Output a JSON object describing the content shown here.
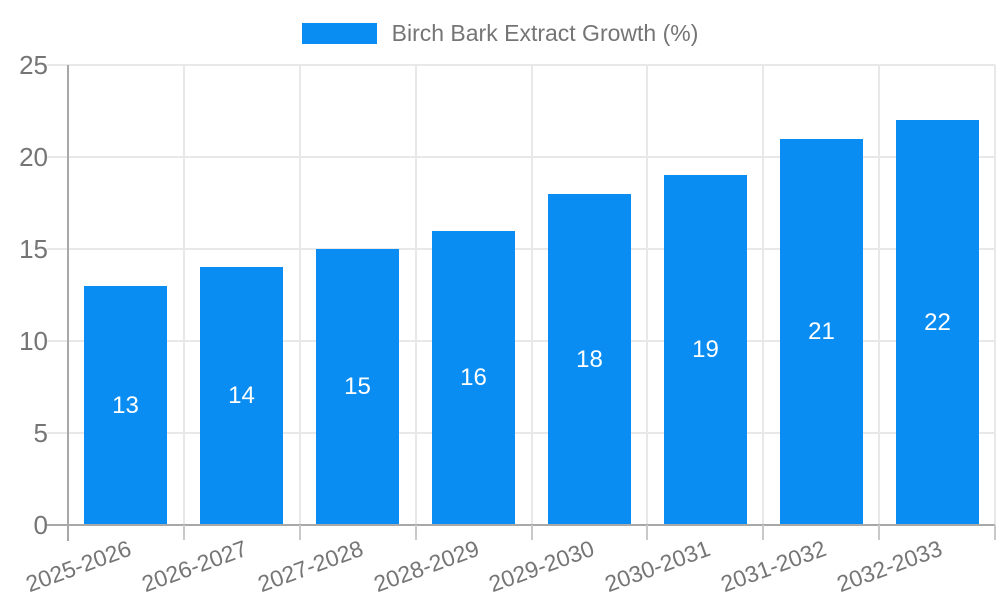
{
  "chart_data": {
    "type": "bar",
    "title": "",
    "legend": {
      "label": "Birch Bark Extract Growth (%)",
      "position": "top-center"
    },
    "categories": [
      "2025-2026",
      "2026-2027",
      "2027-2028",
      "2028-2029",
      "2029-2030",
      "2030-2031",
      "2031-2032",
      "2032-2033"
    ],
    "series": [
      {
        "name": "Birch Bark Extract Growth (%)",
        "values": [
          13,
          14,
          15,
          16,
          18,
          19,
          21,
          22
        ]
      }
    ],
    "bar_value_labels": [
      "13",
      "14",
      "15",
      "16",
      "18",
      "19",
      "21",
      "22"
    ],
    "xlabel": "",
    "ylabel": "",
    "ylim": [
      0,
      25
    ],
    "yticks": [
      0,
      5,
      10,
      15,
      20,
      25
    ],
    "grid": "on",
    "colors": {
      "bar": "#0a8df3",
      "gridline": "#e8e8e8",
      "axis_line": "#a8a8a8",
      "x_tick": "#c9c9c9",
      "tick_text": "#757575",
      "legend_text": "#757575",
      "bar_value_text": "#ffffff",
      "background": "#ffffff"
    }
  }
}
